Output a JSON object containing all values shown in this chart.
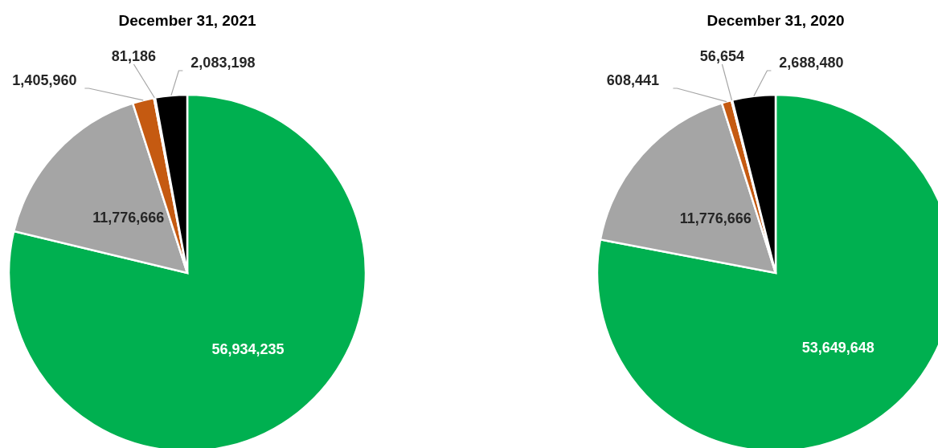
{
  "chart_data": [
    {
      "type": "pie",
      "title": "December 31, 2021",
      "categories": [
        null,
        null,
        null,
        null,
        null
      ],
      "values": [
        56934235,
        11776666,
        1405960,
        81186,
        2083198
      ],
      "colors": [
        "#00b050",
        "#a5a5a5",
        "#c55a11",
        "#ffc000",
        "#000000"
      ],
      "value_labels": [
        "56,934,235",
        "11,776,666",
        "1,405,960",
        "81,186",
        "2,083,198"
      ]
    },
    {
      "type": "pie",
      "title": "December 31, 2020",
      "categories": [
        null,
        null,
        null,
        null,
        null
      ],
      "values": [
        53649648,
        11776666,
        608441,
        56654,
        2688480
      ],
      "colors": [
        "#00b050",
        "#a5a5a5",
        "#c55a11",
        "#ffc000",
        "#000000"
      ],
      "value_labels": [
        "53,649,648",
        "11,776,666",
        "608,441",
        "56,654",
        "2,688,480"
      ]
    }
  ]
}
